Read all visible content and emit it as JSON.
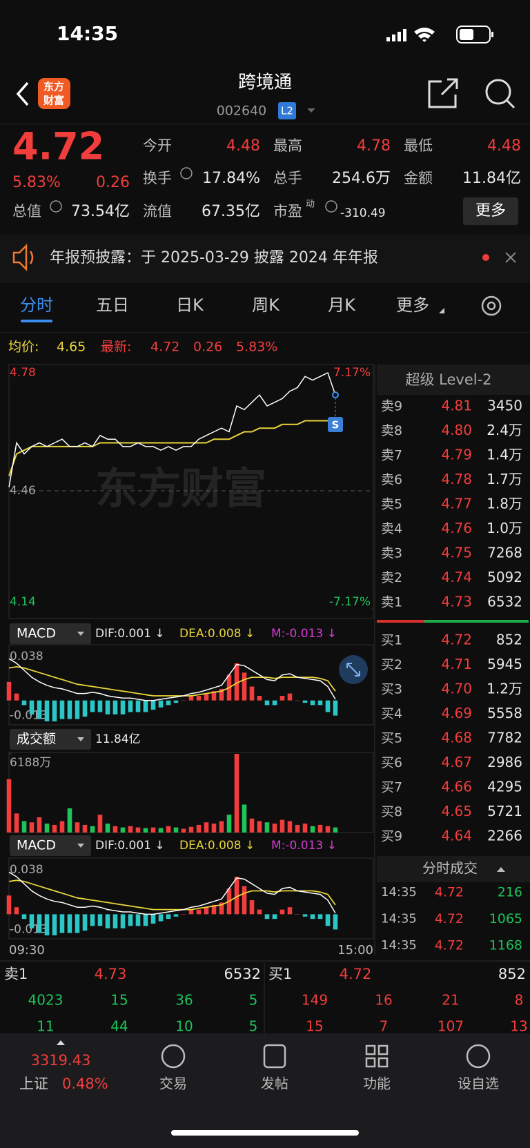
{
  "status_bar": {
    "time": "14:35"
  },
  "header": {
    "logo": [
      "东方",
      "财富"
    ],
    "title": "跨境通",
    "code": "002640",
    "badge": "L2"
  },
  "quote": {
    "price": "4.72",
    "change_pct": "5.83%",
    "change": "0.26",
    "fields": [
      {
        "label": "今开",
        "value": "4.48"
      },
      {
        "label": "最高",
        "value": "4.78"
      },
      {
        "label": "最低",
        "value": "4.48"
      },
      {
        "label": "换手",
        "value": "17.84%"
      },
      {
        "label": "总手",
        "value": "254.6万"
      },
      {
        "label": "金额",
        "value": "11.84亿"
      },
      {
        "label": "总值",
        "value": "73.54亿"
      },
      {
        "label": "流值",
        "value": "67.35亿"
      },
      {
        "label": "市盈",
        "sup": "动",
        "value": "-310.49"
      }
    ],
    "more": "更多"
  },
  "notice": "年报预披露：于 2025-03-29 披露 2024 年年报",
  "tabs": [
    "分时",
    "五日",
    "日K",
    "周K",
    "月K",
    "更多"
  ],
  "summary": {
    "avg_label": "均价:",
    "avg": "4.65",
    "last_label": "最新:",
    "last": "4.72",
    "change": "0.26",
    "change_pct": "5.83%"
  },
  "intraday": {
    "ylim": [
      4.14,
      4.78
    ],
    "yticks": [
      4.78,
      4.46,
      4.14
    ],
    "y2lim": [
      -7.17,
      7.17
    ],
    "y2ticks": [
      {
        "value": 7.17,
        "label": "7.17%"
      },
      {
        "value": -7.17,
        "label": "-7.17%"
      }
    ],
    "price": [
      4.47,
      4.59,
      4.56,
      4.58,
      4.59,
      4.58,
      4.59,
      4.6,
      4.58,
      4.58,
      4.59,
      4.58,
      4.61,
      4.6,
      4.6,
      4.58,
      4.58,
      4.59,
      4.58,
      4.58,
      4.57,
      4.58,
      4.57,
      4.58,
      4.58,
      4.6,
      4.61,
      4.62,
      4.63,
      4.62,
      4.69,
      4.68,
      4.7,
      4.72,
      4.69,
      4.7,
      4.71,
      4.73,
      4.74,
      4.77,
      4.76,
      4.77,
      4.78,
      4.72,
      null,
      null,
      null,
      null,
      null
    ],
    "avg": [
      4.5,
      4.56,
      4.57,
      4.58,
      4.58,
      4.58,
      4.58,
      4.58,
      4.58,
      4.58,
      4.58,
      4.58,
      4.59,
      4.59,
      4.59,
      4.59,
      4.59,
      4.59,
      4.59,
      4.59,
      4.59,
      4.59,
      4.59,
      4.59,
      4.59,
      4.59,
      4.59,
      4.6,
      4.6,
      4.6,
      4.61,
      4.62,
      4.62,
      4.63,
      4.63,
      4.63,
      4.64,
      4.64,
      4.64,
      4.65,
      4.65,
      4.65,
      4.65,
      4.65,
      null,
      null,
      null,
      null,
      null
    ],
    "price_color": "#ffffff",
    "avg_color": "#e8d43a",
    "signal": "S",
    "watermark": "东方财富",
    "xlabels": [
      "09:30",
      "15:00"
    ]
  },
  "macd": {
    "name": "MACD",
    "dif_label": "DIF:0.001 ↓",
    "dea_label": "DEA:0.008 ↓",
    "m_label": "M:-0.013 ↓",
    "ylim": [
      -0.021,
      0.048
    ],
    "yticks": [
      0.038,
      -0.013
    ],
    "dif": [
      0.036,
      0.032,
      0.026,
      0.02,
      0.016,
      0.013,
      0.011,
      0.01,
      0.008,
      0.006,
      0.006,
      0.007,
      0.006,
      0.004,
      0.003,
      0.002,
      0.002,
      0.001,
      0.0,
      0.0,
      0.001,
      0.002,
      0.003,
      0.004,
      0.006,
      0.007,
      0.009,
      0.011,
      0.013,
      0.022,
      0.031,
      0.03,
      0.026,
      0.022,
      0.018,
      0.017,
      0.022,
      0.023,
      0.02,
      0.019,
      0.018,
      0.017,
      0.012,
      0.001
    ],
    "dea": [
      0.028,
      0.029,
      0.028,
      0.026,
      0.024,
      0.022,
      0.02,
      0.018,
      0.016,
      0.014,
      0.013,
      0.012,
      0.011,
      0.01,
      0.009,
      0.008,
      0.007,
      0.006,
      0.005,
      0.004,
      0.004,
      0.004,
      0.004,
      0.004,
      0.004,
      0.005,
      0.006,
      0.007,
      0.008,
      0.011,
      0.015,
      0.018,
      0.02,
      0.02,
      0.02,
      0.019,
      0.02,
      0.02,
      0.02,
      0.02,
      0.02,
      0.019,
      0.017,
      0.008
    ],
    "m": [
      0.016,
      0.006,
      -0.004,
      -0.012,
      -0.016,
      -0.018,
      -0.018,
      -0.016,
      -0.016,
      -0.016,
      -0.014,
      -0.01,
      -0.01,
      -0.012,
      -0.012,
      -0.012,
      -0.01,
      -0.01,
      -0.01,
      -0.008,
      -0.006,
      -0.004,
      -0.002,
      0,
      0.004,
      0.004,
      0.006,
      0.008,
      0.01,
      0.022,
      0.032,
      0.024,
      0.012,
      0.004,
      -0.004,
      -0.004,
      0.004,
      0.006,
      0,
      -0.002,
      -0.004,
      -0.004,
      -0.01,
      -0.013
    ]
  },
  "volume": {
    "name": "成交额",
    "total": "11.84亿",
    "ylim": [
      0,
      6188
    ],
    "yticks": [
      {
        "value": 6188,
        "label": "6188万"
      }
    ],
    "values": [
      4200,
      1500,
      900,
      800,
      1200,
      700,
      600,
      900,
      1900,
      800,
      600,
      500,
      1400,
      700,
      500,
      400,
      500,
      400,
      350,
      400,
      350,
      500,
      400,
      300,
      450,
      600,
      800,
      700,
      900,
      1400,
      6188,
      2200,
      1100,
      900,
      800,
      700,
      1000,
      900,
      600,
      700,
      500,
      600,
      500,
      400
    ]
  },
  "order_book": {
    "title": "超级 Level-2",
    "asks": [
      {
        "label": "卖9",
        "price": "4.81",
        "volume": "3450"
      },
      {
        "label": "卖8",
        "price": "4.80",
        "volume": "2.4万"
      },
      {
        "label": "卖7",
        "price": "4.79",
        "volume": "1.4万"
      },
      {
        "label": "卖6",
        "price": "4.78",
        "volume": "1.7万"
      },
      {
        "label": "卖5",
        "price": "4.77",
        "volume": "1.8万"
      },
      {
        "label": "卖4",
        "price": "4.76",
        "volume": "1.0万"
      },
      {
        "label": "卖3",
        "price": "4.75",
        "volume": "7268"
      },
      {
        "label": "卖2",
        "price": "4.74",
        "volume": "5092"
      },
      {
        "label": "卖1",
        "price": "4.73",
        "volume": "6532"
      }
    ],
    "bids": [
      {
        "label": "买1",
        "price": "4.72",
        "volume": "852"
      },
      {
        "label": "买2",
        "price": "4.71",
        "volume": "5945"
      },
      {
        "label": "买3",
        "price": "4.70",
        "volume": "1.2万"
      },
      {
        "label": "买4",
        "price": "4.69",
        "volume": "5558"
      },
      {
        "label": "买5",
        "price": "4.68",
        "volume": "7782"
      },
      {
        "label": "买6",
        "price": "4.67",
        "volume": "2986"
      },
      {
        "label": "买7",
        "price": "4.66",
        "volume": "4295"
      },
      {
        "label": "买8",
        "price": "4.65",
        "volume": "5721"
      },
      {
        "label": "买9",
        "price": "4.64",
        "volume": "2266"
      }
    ]
  },
  "trades": {
    "title": "分时成交",
    "rows": [
      {
        "time": "14:35",
        "price": "4.72",
        "volume": "216"
      },
      {
        "time": "14:35",
        "price": "4.72",
        "volume": "1065"
      },
      {
        "time": "14:35",
        "price": "4.72",
        "volume": "1168"
      }
    ]
  },
  "queue": {
    "ask": {
      "label": "卖1",
      "price": "4.73",
      "volume": "6532",
      "orders": [
        [
          "4023",
          "15",
          "36",
          "5"
        ],
        [
          "11",
          "44",
          "10",
          "5"
        ]
      ]
    },
    "bid": {
      "label": "买1",
      "price": "4.72",
      "volume": "852",
      "orders": [
        [
          "149",
          "16",
          "21",
          "8"
        ],
        [
          "15",
          "7",
          "107",
          "13"
        ]
      ]
    }
  },
  "nav": {
    "index": {
      "value": "3319.43",
      "name": "上证",
      "change_pct": "0.48%"
    },
    "items": [
      "交易",
      "发帖",
      "功能",
      "设自选"
    ]
  }
}
